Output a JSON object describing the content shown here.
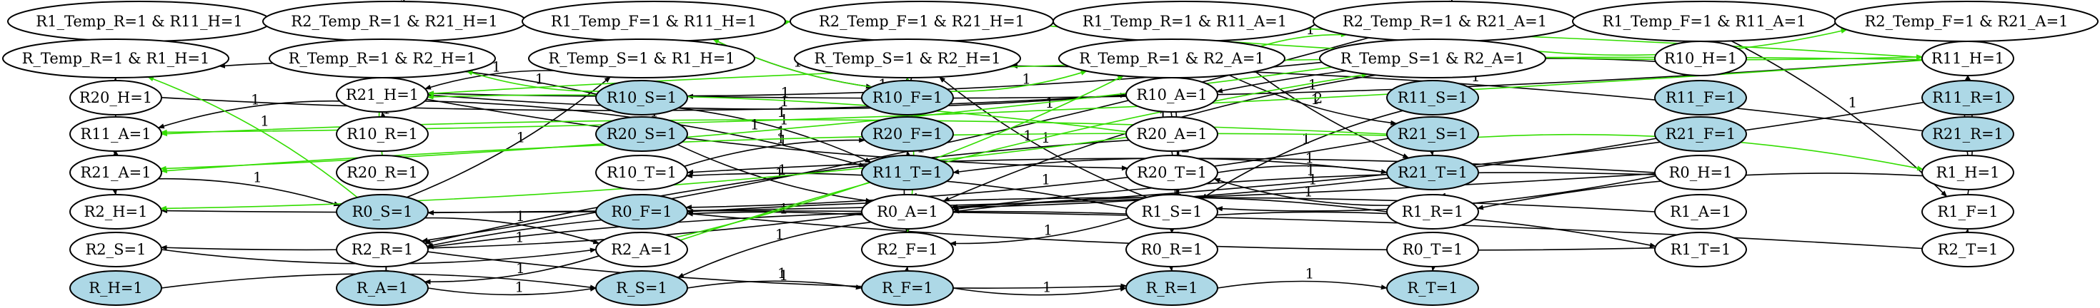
{
  "colors": {
    "plain": "#ffffff",
    "highlight": "#add8e6",
    "black_edge": "#000000",
    "green_edge": "#33dd00"
  },
  "nodes": [
    {
      "id": "R1_Temp_R1_R11_H1",
      "label": "R1_Temp_R=1 & R11_H=1",
      "fill": "plain"
    },
    {
      "id": "R2_Temp_R1_R21_H1",
      "label": "R2_Temp_R=1 & R21_H=1",
      "fill": "plain"
    },
    {
      "id": "R1_Temp_F1_R11_H1",
      "label": "R1_Temp_F=1 & R11_H=1",
      "fill": "plain"
    },
    {
      "id": "R2_Temp_F1_R21_H1",
      "label": "R2_Temp_F=1 & R21_H=1",
      "fill": "plain"
    },
    {
      "id": "R1_Temp_R1_R11_A1",
      "label": "R1_Temp_R=1 & R11_A=1",
      "fill": "plain"
    },
    {
      "id": "R2_Temp_R1_R21_A1",
      "label": "R2_Temp_R=1 & R21_A=1",
      "fill": "plain"
    },
    {
      "id": "R1_Temp_F1_R11_A1",
      "label": "R1_Temp_F=1 & R11_A=1",
      "fill": "plain"
    },
    {
      "id": "R2_Temp_F1_R21_A1",
      "label": "R2_Temp_F=1 & R21_A=1",
      "fill": "plain"
    },
    {
      "id": "R_Temp_R1_R1_H1",
      "label": "R_Temp_R=1 & R1_H=1",
      "fill": "plain"
    },
    {
      "id": "R_Temp_R1_R2_H1",
      "label": "R_Temp_R=1 & R2_H=1",
      "fill": "plain"
    },
    {
      "id": "R_Temp_S1_R1_H1",
      "label": "R_Temp_S=1 & R1_H=1",
      "fill": "plain"
    },
    {
      "id": "R_Temp_S1_R2_H1",
      "label": "R_Temp_S=1 & R2_H=1",
      "fill": "plain"
    },
    {
      "id": "R_Temp_R1_R2_A1",
      "label": "R_Temp_R=1 & R2_A=1",
      "fill": "plain"
    },
    {
      "id": "R_Temp_S1_R2_A1",
      "label": "R_Temp_S=1 & R2_A=1",
      "fill": "plain"
    },
    {
      "id": "R10_H",
      "label": "R10_H=1",
      "fill": "plain"
    },
    {
      "id": "R11_H",
      "label": "R11_H=1",
      "fill": "plain"
    },
    {
      "id": "R20_H",
      "label": "R20_H=1",
      "fill": "plain"
    },
    {
      "id": "R21_H",
      "label": "R21_H=1",
      "fill": "plain"
    },
    {
      "id": "R10_S",
      "label": "R10_S=1",
      "fill": "highlight"
    },
    {
      "id": "R10_F",
      "label": "R10_F=1",
      "fill": "highlight"
    },
    {
      "id": "R10_A",
      "label": "R10_A=1",
      "fill": "plain"
    },
    {
      "id": "R11_S",
      "label": "R11_S=1",
      "fill": "highlight"
    },
    {
      "id": "R11_F",
      "label": "R11_F=1",
      "fill": "highlight"
    },
    {
      "id": "R11_R",
      "label": "R11_R=1",
      "fill": "highlight"
    },
    {
      "id": "R11_A",
      "label": "R11_A=1",
      "fill": "plain"
    },
    {
      "id": "R10_R",
      "label": "R10_R=1",
      "fill": "plain"
    },
    {
      "id": "R20_S",
      "label": "R20_S=1",
      "fill": "highlight"
    },
    {
      "id": "R20_F",
      "label": "R20_F=1",
      "fill": "highlight"
    },
    {
      "id": "R20_A",
      "label": "R20_A=1",
      "fill": "plain"
    },
    {
      "id": "R21_S",
      "label": "R21_S=1",
      "fill": "highlight"
    },
    {
      "id": "R21_F",
      "label": "R21_F=1",
      "fill": "highlight"
    },
    {
      "id": "R21_R",
      "label": "R21_R=1",
      "fill": "highlight"
    },
    {
      "id": "R21_A",
      "label": "R21_A=1",
      "fill": "plain"
    },
    {
      "id": "R20_R",
      "label": "R20_R=1",
      "fill": "plain"
    },
    {
      "id": "R10_T",
      "label": "R10_T=1",
      "fill": "plain"
    },
    {
      "id": "R11_T",
      "label": "R11_T=1",
      "fill": "highlight"
    },
    {
      "id": "R20_T",
      "label": "R20_T=1",
      "fill": "plain"
    },
    {
      "id": "R21_T",
      "label": "R21_T=1",
      "fill": "highlight"
    },
    {
      "id": "R0_H",
      "label": "R0_H=1",
      "fill": "plain"
    },
    {
      "id": "R1_H",
      "label": "R1_H=1",
      "fill": "plain"
    },
    {
      "id": "R2_H",
      "label": "R2_H=1",
      "fill": "plain"
    },
    {
      "id": "R0_S",
      "label": "R0_S=1",
      "fill": "highlight"
    },
    {
      "id": "R0_F",
      "label": "R0_F=1",
      "fill": "highlight"
    },
    {
      "id": "R0_A",
      "label": "R0_A=1",
      "fill": "plain"
    },
    {
      "id": "R1_S",
      "label": "R1_S=1",
      "fill": "plain"
    },
    {
      "id": "R1_R",
      "label": "R1_R=1",
      "fill": "plain"
    },
    {
      "id": "R1_A",
      "label": "R1_A=1",
      "fill": "plain"
    },
    {
      "id": "R1_F",
      "label": "R1_F=1",
      "fill": "plain"
    },
    {
      "id": "R2_S",
      "label": "R2_S=1",
      "fill": "plain"
    },
    {
      "id": "R2_R",
      "label": "R2_R=1",
      "fill": "plain"
    },
    {
      "id": "R2_A",
      "label": "R2_A=1",
      "fill": "plain"
    },
    {
      "id": "R2_F",
      "label": "R2_F=1",
      "fill": "plain"
    },
    {
      "id": "R0_R",
      "label": "R0_R=1",
      "fill": "plain"
    },
    {
      "id": "R0_T",
      "label": "R0_T=1",
      "fill": "plain"
    },
    {
      "id": "R1_T",
      "label": "R1_T=1",
      "fill": "plain"
    },
    {
      "id": "R2_T",
      "label": "R2_T=1",
      "fill": "plain"
    },
    {
      "id": "R_H",
      "label": "R_H=1",
      "fill": "highlight"
    },
    {
      "id": "R_A",
      "label": "R_A=1",
      "fill": "highlight"
    },
    {
      "id": "R_S",
      "label": "R_S=1",
      "fill": "highlight"
    },
    {
      "id": "R_F",
      "label": "R_F=1",
      "fill": "highlight"
    },
    {
      "id": "R_R",
      "label": "R_R=1",
      "fill": "highlight"
    },
    {
      "id": "R_T",
      "label": "R_T=1",
      "fill": "highlight"
    }
  ],
  "edges": [
    {
      "from": "R_H",
      "to": "R_S",
      "label": "1",
      "color": "black_edge"
    },
    {
      "from": "R_A",
      "to": "R_S",
      "label": "1",
      "color": "black_edge"
    },
    {
      "from": "R_S",
      "to": "R_F",
      "label": "1",
      "color": "black_edge"
    },
    {
      "from": "R_F",
      "to": "R_R",
      "label": "1",
      "color": "black_edge"
    },
    {
      "from": "R_R",
      "to": "R_T",
      "label": "1",
      "color": "black_edge"
    },
    {
      "from": "R2_R",
      "to": "R_R",
      "label": "1",
      "color": "black_edge"
    },
    {
      "from": "R0_T",
      "to": "R_T",
      "label": "1",
      "color": "black_edge"
    },
    {
      "from": "R0_R",
      "to": "R_R",
      "label": "1",
      "color": "black_edge"
    },
    {
      "from": "R_F",
      "to": "R2_F",
      "label": "1",
      "color": "black_edge"
    },
    {
      "from": "R0_A",
      "to": "R_S",
      "label": "1",
      "color": "black_edge"
    },
    {
      "from": "R2_A",
      "to": "R_A",
      "label": "1",
      "color": "black_edge"
    },
    {
      "from": "R2_S",
      "to": "R2_A",
      "label": "1",
      "color": "black_edge"
    },
    {
      "from": "R0_S",
      "to": "R2_A",
      "label": "1",
      "color": "black_edge"
    },
    {
      "from": "R0_S",
      "to": "R_Temp_S1_R1_H1",
      "label": "1",
      "color": "black_edge"
    },
    {
      "from": "R0_A",
      "to": "R2_S",
      "label": "1",
      "color": "black_edge"
    },
    {
      "from": "R0_A",
      "to": "R2_R",
      "label": "1",
      "color": "black_edge"
    },
    {
      "from": "R0_A",
      "to": "R2_F",
      "label": "1",
      "color": "black_edge"
    },
    {
      "from": "R1_S",
      "to": "R0_R",
      "label": "1",
      "color": "black_edge"
    },
    {
      "from": "R1_S",
      "to": "R2_F",
      "label": "1",
      "color": "black_edge"
    },
    {
      "from": "R1_S",
      "to": "R2_R",
      "label": "1",
      "color": "black_edge"
    },
    {
      "from": "R1_S",
      "to": "R1_T",
      "label": "1",
      "color": "black_edge"
    },
    {
      "from": "R1_S",
      "to": "R10_T",
      "label": "1",
      "color": "black_edge"
    },
    {
      "from": "R1_S",
      "to": "R_Temp_S1_R2_H1",
      "label": "1",
      "color": "black_edge"
    },
    {
      "from": "R1_R",
      "to": "R0_A",
      "label": "1",
      "color": "black_edge"
    },
    {
      "from": "R1_R",
      "to": "R20_T",
      "label": "1",
      "color": "black_edge"
    },
    {
      "from": "R1_A",
      "to": "R0_F",
      "label": "1",
      "color": "black_edge"
    },
    {
      "from": "R1_T",
      "to": "R0_F",
      "label": "1",
      "color": "black_edge"
    },
    {
      "from": "R2_T",
      "to": "R0_S",
      "label": "1",
      "color": "black_edge"
    },
    {
      "from": "R2_T",
      "to": "R1_F",
      "label": "1",
      "color": "black_edge"
    },
    {
      "from": "R1_F",
      "to": "R11_H",
      "label": "2",
      "color": "black_edge"
    },
    {
      "from": "R1_H",
      "to": "R11_H",
      "label": "1",
      "color": "black_edge"
    },
    {
      "from": "R1_H",
      "to": "R1_R",
      "label": "1",
      "color": "black_edge"
    },
    {
      "from": "R0_H",
      "to": "R2_H",
      "label": "1",
      "color": "black_edge"
    },
    {
      "from": "R0_H",
      "to": "R0_A",
      "label": "1",
      "color": "black_edge"
    },
    {
      "from": "R0_H",
      "to": "R1_S",
      "label": "1",
      "color": "black_edge"
    },
    {
      "from": "R0_H",
      "to": "R10_T",
      "label": "1",
      "color": "black_edge"
    },
    {
      "from": "R2_H",
      "to": "R11_A",
      "label": "1",
      "color": "black_edge"
    },
    {
      "from": "R21_A",
      "to": "R2_H",
      "label": "1",
      "color": "black_edge"
    },
    {
      "from": "R21_A",
      "to": "R0_S",
      "label": "1",
      "color": "black_edge"
    },
    {
      "from": "R21_A",
      "to": "R11_A",
      "label": "1",
      "color": "black_edge"
    },
    {
      "from": "R11_A",
      "to": "R_Temp_R1_R1_H1",
      "label": "1",
      "color": "black_edge"
    },
    {
      "from": "R11_A",
      "to": "R21_A",
      "label": "1",
      "color": "black_edge"
    },
    {
      "from": "R21_H",
      "to": "R_Temp_R1_R2_H1",
      "label": "1",
      "color": "black_edge"
    },
    {
      "from": "R21_H",
      "to": "R11_A",
      "label": "1",
      "color": "black_edge"
    },
    {
      "from": "R21_H",
      "to": "R11_T",
      "label": "1",
      "color": "black_edge"
    },
    {
      "from": "R21_H",
      "to": "R20_T",
      "label": "1",
      "color": "black_edge"
    },
    {
      "from": "R10_R",
      "to": "R_Temp_R1_R11_H1",
      "label": "1",
      "color": "black_edge"
    },
    {
      "from": "R10_R",
      "to": "R21_H",
      "label": "1",
      "color": "black_edge"
    },
    {
      "from": "R20_R",
      "to": "R_Temp_R1_R2_H1",
      "label": "1",
      "color": "black_edge"
    },
    {
      "from": "R20_H",
      "to": "R10_A",
      "label": "1",
      "color": "black_edge"
    },
    {
      "from": "R10_S",
      "to": "R11_T",
      "label": "1",
      "color": "black_edge"
    },
    {
      "from": "R10_S",
      "to": "R_Temp_R1_R1_H1",
      "label": "1",
      "color": "black_edge"
    },
    {
      "from": "R10_F",
      "to": "R_Temp_S1_R2_H1",
      "label": "1",
      "color": "black_edge"
    },
    {
      "from": "R10_F",
      "to": "R2_Temp_F1_R21_H1",
      "label": "1",
      "color": "black_edge"
    },
    {
      "from": "R10_A",
      "to": "R21_H",
      "label": "1",
      "color": "black_edge"
    },
    {
      "from": "R10_H",
      "to": "R10_A",
      "label": "1",
      "color": "black_edge"
    },
    {
      "from": "R11_H",
      "to": "R10_S",
      "label": "1",
      "color": "black_edge"
    },
    {
      "from": "R11_S",
      "to": "R1_S",
      "label": "1",
      "color": "black_edge"
    },
    {
      "from": "R11_R",
      "to": "R0_A",
      "label": "1",
      "color": "black_edge"
    },
    {
      "from": "R20_S",
      "to": "R0_A",
      "label": "1",
      "color": "black_edge"
    },
    {
      "from": "R20_F",
      "to": "R10_F",
      "label": "1",
      "color": "black_edge"
    },
    {
      "from": "R20_F",
      "to": "R2_F",
      "label": "1",
      "color": "black_edge"
    },
    {
      "from": "R20_A",
      "to": "R0_R",
      "label": "1",
      "color": "black_edge"
    },
    {
      "from": "R20_A",
      "to": "R2_R",
      "label": "1",
      "color": "black_edge"
    },
    {
      "from": "R20_A",
      "to": "R_Temp_R1_R2_A1",
      "label": "1",
      "color": "black_edge"
    },
    {
      "from": "R21_S",
      "to": "R21_T",
      "label": "2",
      "color": "black_edge"
    },
    {
      "from": "R21_S",
      "to": "R0_F",
      "label": "1",
      "color": "black_edge"
    },
    {
      "from": "R21_R",
      "to": "R_Temp_S1_R2_H1",
      "label": "1",
      "color": "black_edge"
    },
    {
      "from": "R21_F",
      "to": "R0_A",
      "label": "1",
      "color": "black_edge"
    },
    {
      "from": "R21_T",
      "to": "R11_T",
      "label": "1",
      "color": "black_edge"
    },
    {
      "from": "R20_T",
      "to": "R21_T",
      "label": "1",
      "color": "black_edge"
    },
    {
      "from": "R11_T",
      "to": "R20_F",
      "label": "1",
      "color": "black_edge"
    },
    {
      "from": "R10_T",
      "to": "R20_F",
      "label": "1",
      "color": "black_edge"
    },
    {
      "from": "R1_Temp_R1_R11_A1",
      "to": "R21_T",
      "label": "1",
      "color": "black_edge"
    },
    {
      "from": "R1_Temp_F1_R11_A1",
      "to": "R1_F",
      "label": "1",
      "color": "black_edge"
    },
    {
      "from": "R_Temp_R1_R2_A1",
      "to": "R21_S",
      "label": "2",
      "color": "black_edge"
    },
    {
      "from": "R_Temp_R1_R2_A1",
      "to": "R0_R",
      "label": "2",
      "color": "black_edge"
    },
    {
      "from": "R_Temp_S1_R2_A1",
      "to": "R0_A",
      "label": "1",
      "color": "black_edge"
    },
    {
      "from": "R_Temp_S1_R2_A1",
      "to": "R21_H",
      "label": "1",
      "color": "black_edge"
    },
    {
      "from": "R_Temp_S1_R1_H1",
      "to": "R21_H",
      "label": "1",
      "color": "black_edge"
    },
    {
      "from": "R2_Temp_R1_R21_A1",
      "to": "R2_R",
      "label": "1",
      "color": "black_edge"
    },
    {
      "from": "R1_Temp_F1_R11_H1",
      "to": "R10_F",
      "label": "1",
      "color": "black_edge"
    },
    {
      "from": "R1_Temp_R1_R11_H1",
      "to": "R1_Temp_F1_R11_H1",
      "label": "1",
      "color": "green_edge"
    },
    {
      "from": "R2_Temp_R1_R21_H1",
      "to": "R2_Temp_F1_R21_H1",
      "label": "1",
      "color": "green_edge"
    },
    {
      "from": "R1_Temp_R1_R11_A1",
      "to": "R1_Temp_F1_R11_A1",
      "label": "1",
      "color": "green_edge"
    },
    {
      "from": "R2_Temp_R1_R21_A1",
      "to": "R2_Temp_F1_R21_A1",
      "label": "1",
      "color": "green_edge"
    },
    {
      "from": "R_Temp_R1_R1_H1",
      "to": "R1_Temp_R1_R11_H1",
      "label": "1",
      "color": "green_edge"
    },
    {
      "from": "R_Temp_R1_R2_H1",
      "to": "R2_Temp_R1_R21_H1",
      "label": "1",
      "color": "green_edge"
    },
    {
      "from": "R_Temp_S1_R1_H1",
      "to": "R1_Temp_F1_R11_H1",
      "label": "1",
      "color": "green_edge"
    },
    {
      "from": "R_Temp_S1_R2_H1",
      "to": "R2_Temp_F1_R21_H1",
      "label": "1",
      "color": "green_edge"
    },
    {
      "from": "R_Temp_R1_R2_A1",
      "to": "R2_Temp_R1_R21_A1",
      "label": "1",
      "color": "green_edge"
    },
    {
      "from": "R_Temp_S1_R2_A1",
      "to": "R2_Temp_F1_R21_A1",
      "label": "1",
      "color": "green_edge"
    },
    {
      "from": "R2_Temp_R1_R21_H1",
      "to": "R11_H",
      "label": "1",
      "color": "green_edge"
    },
    {
      "from": "R2_Temp_F1_R21_H1",
      "to": "R11_H",
      "label": "1",
      "color": "green_edge"
    },
    {
      "from": "R10_S",
      "to": "R_Temp_R1_R2_H1",
      "label": "1",
      "color": "green_edge"
    },
    {
      "from": "R10_F",
      "to": "R_Temp_R1_R2_A1",
      "label": "1",
      "color": "green_edge"
    },
    {
      "from": "R10_F",
      "to": "R1_Temp_F1_R11_H1",
      "label": "1",
      "color": "green_edge"
    },
    {
      "from": "R11_H",
      "to": "R21_H",
      "label": "1",
      "color": "green_edge"
    },
    {
      "from": "R11_H",
      "to": "R11_A",
      "label": "1",
      "color": "green_edge"
    },
    {
      "from": "R21_S",
      "to": "R11_A",
      "label": "1",
      "color": "green_edge"
    },
    {
      "from": "R21_S",
      "to": "R1_H",
      "label": "1",
      "color": "green_edge"
    },
    {
      "from": "R21_S",
      "to": "R21_A",
      "label": "1",
      "color": "green_edge"
    },
    {
      "from": "R20_A",
      "to": "R2_H",
      "label": "1",
      "color": "green_edge"
    },
    {
      "from": "R20_A",
      "to": "R21_H",
      "label": "1",
      "color": "green_edge"
    },
    {
      "from": "R_Temp_S1_R2_A1",
      "to": "R21_A",
      "label": "1",
      "color": "green_edge"
    },
    {
      "from": "R2_A",
      "to": "R_Temp_R1_R2_A1",
      "label": "1",
      "color": "green_edge"
    },
    {
      "from": "R2_A",
      "to": "R_Temp_S1_R2_A1",
      "label": "1",
      "color": "green_edge"
    },
    {
      "from": "R2_F",
      "to": "R_Temp_S1_R2_H1",
      "label": "1",
      "color": "green_edge"
    },
    {
      "from": "R20_R",
      "to": "R_Temp_R1_R2_H1",
      "label": "1",
      "color": "green_edge"
    },
    {
      "from": "R0_S",
      "to": "R_Temp_R1_R1_H1",
      "label": "1",
      "color": "green_edge"
    }
  ]
}
